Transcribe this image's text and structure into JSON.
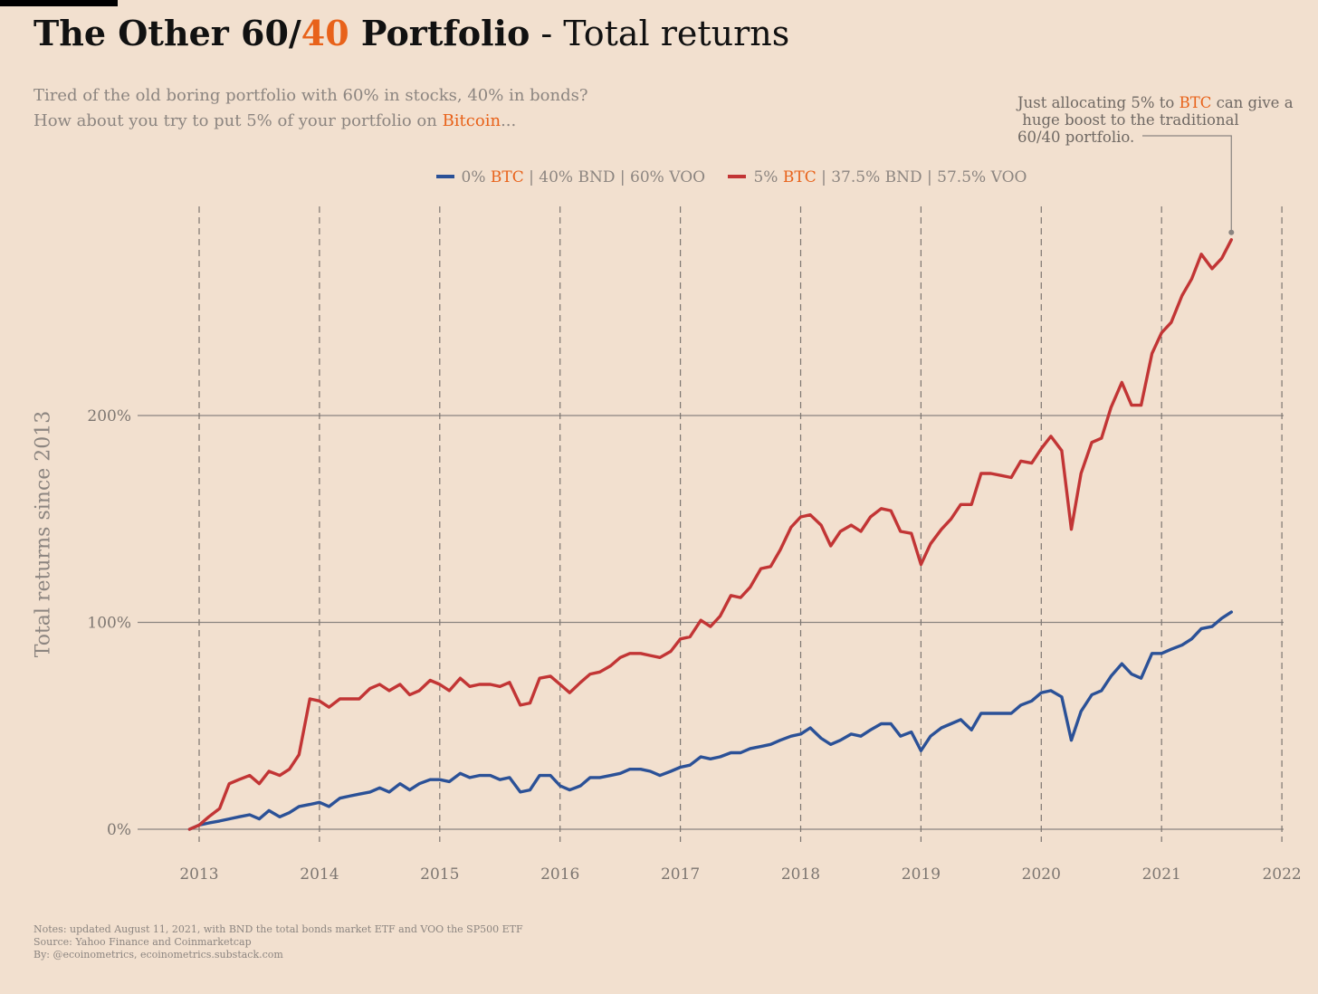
{
  "header": {
    "title_part1": "The Other 60/",
    "title_part2": "40",
    "title_part3": " Portfolio",
    "title_part4": " - Total returns",
    "subtitle_line1": "Tired of the old boring portfolio with 60% in stocks, 40% in bonds?",
    "subtitle_line2_pre": "How about you try to put 5% of your portfolio on ",
    "subtitle_line2_accent": "Bitcoin",
    "subtitle_line2_post": "..."
  },
  "annotation": {
    "line1_pre": "Just allocating 5% to ",
    "line1_accent": "BTC",
    "line1_post": " can give a",
    "line2": " huge boost to the traditional",
    "line3": "60/40 portfolio."
  },
  "legend": [
    {
      "pre": "0% ",
      "accent": "BTC",
      "post": " | 40% BND | 60% VOO",
      "color": "#2b5197"
    },
    {
      "pre": "5% ",
      "accent": "BTC",
      "post": " | 37.5% BND | 57.5% VOO",
      "color": "#c23535"
    }
  ],
  "notes": {
    "line1": "Notes: updated August 11, 2021, with BND the total bonds market ETF and VOO the SP500 ETF",
    "line2": "Source: Yahoo Finance and Coinmarketcap",
    "line3": "By: @ecoinometrics, ecoinometrics.substack.com"
  },
  "colors": {
    "background": "#f2e0cf",
    "accent": "#e8621a",
    "series_blue": "#2b5197",
    "series_red": "#c23535",
    "grid": "#8a8480"
  },
  "chart_data": {
    "type": "line",
    "title": "The Other 60/40 Portfolio - Total returns",
    "ylabel": "Total returns since 2013",
    "xlabel": "",
    "x_ticks": [
      "2013",
      "2014",
      "2015",
      "2016",
      "2017",
      "2018",
      "2019",
      "2020",
      "2021",
      "2022"
    ],
    "y_ticks": [
      0,
      100,
      200
    ],
    "y_tick_labels": [
      "0%",
      "100%",
      "200%"
    ],
    "xlim": [
      2012.5,
      2022
    ],
    "ylim": [
      -15,
      300
    ],
    "grid": {
      "horizontal": true,
      "vertical_dashed": true
    },
    "legend_position": "top-center",
    "series": [
      {
        "name": "0% BTC | 40% BND | 60% VOO",
        "color": "#2b5197",
        "points": [
          [
            2012.92,
            0
          ],
          [
            2013.0,
            2
          ],
          [
            2013.08,
            3
          ],
          [
            2013.17,
            4
          ],
          [
            2013.25,
            5
          ],
          [
            2013.33,
            6
          ],
          [
            2013.42,
            7
          ],
          [
            2013.5,
            5
          ],
          [
            2013.58,
            9
          ],
          [
            2013.67,
            6
          ],
          [
            2013.75,
            8
          ],
          [
            2013.83,
            11
          ],
          [
            2013.92,
            12
          ],
          [
            2014.0,
            13
          ],
          [
            2014.08,
            11
          ],
          [
            2014.17,
            15
          ],
          [
            2014.25,
            16
          ],
          [
            2014.33,
            17
          ],
          [
            2014.42,
            18
          ],
          [
            2014.5,
            20
          ],
          [
            2014.58,
            18
          ],
          [
            2014.67,
            22
          ],
          [
            2014.75,
            19
          ],
          [
            2014.83,
            22
          ],
          [
            2014.92,
            24
          ],
          [
            2015.0,
            24
          ],
          [
            2015.08,
            23
          ],
          [
            2015.17,
            27
          ],
          [
            2015.25,
            25
          ],
          [
            2015.33,
            26
          ],
          [
            2015.42,
            26
          ],
          [
            2015.5,
            24
          ],
          [
            2015.58,
            25
          ],
          [
            2015.67,
            18
          ],
          [
            2015.75,
            19
          ],
          [
            2015.83,
            26
          ],
          [
            2015.92,
            26
          ],
          [
            2016.0,
            21
          ],
          [
            2016.08,
            19
          ],
          [
            2016.17,
            21
          ],
          [
            2016.25,
            25
          ],
          [
            2016.33,
            25
          ],
          [
            2016.42,
            26
          ],
          [
            2016.5,
            27
          ],
          [
            2016.58,
            29
          ],
          [
            2016.67,
            29
          ],
          [
            2016.75,
            28
          ],
          [
            2016.83,
            26
          ],
          [
            2016.92,
            28
          ],
          [
            2017.0,
            30
          ],
          [
            2017.08,
            31
          ],
          [
            2017.17,
            35
          ],
          [
            2017.25,
            34
          ],
          [
            2017.33,
            35
          ],
          [
            2017.42,
            37
          ],
          [
            2017.5,
            37
          ],
          [
            2017.58,
            39
          ],
          [
            2017.67,
            40
          ],
          [
            2017.75,
            41
          ],
          [
            2017.83,
            43
          ],
          [
            2017.92,
            45
          ],
          [
            2018.0,
            46
          ],
          [
            2018.08,
            49
          ],
          [
            2018.17,
            44
          ],
          [
            2018.25,
            41
          ],
          [
            2018.33,
            43
          ],
          [
            2018.42,
            46
          ],
          [
            2018.5,
            45
          ],
          [
            2018.58,
            48
          ],
          [
            2018.67,
            51
          ],
          [
            2018.75,
            51
          ],
          [
            2018.83,
            45
          ],
          [
            2018.92,
            47
          ],
          [
            2019.0,
            38
          ],
          [
            2019.08,
            45
          ],
          [
            2019.17,
            49
          ],
          [
            2019.25,
            51
          ],
          [
            2019.33,
            53
          ],
          [
            2019.42,
            48
          ],
          [
            2019.5,
            56
          ],
          [
            2019.58,
            56
          ],
          [
            2019.67,
            56
          ],
          [
            2019.75,
            56
          ],
          [
            2019.83,
            60
          ],
          [
            2019.92,
            62
          ],
          [
            2020.0,
            66
          ],
          [
            2020.08,
            67
          ],
          [
            2020.17,
            64
          ],
          [
            2020.25,
            43
          ],
          [
            2020.33,
            57
          ],
          [
            2020.42,
            65
          ],
          [
            2020.5,
            67
          ],
          [
            2020.58,
            74
          ],
          [
            2020.67,
            80
          ],
          [
            2020.75,
            75
          ],
          [
            2020.83,
            73
          ],
          [
            2020.92,
            85
          ],
          [
            2021.0,
            85
          ],
          [
            2021.08,
            87
          ],
          [
            2021.17,
            89
          ],
          [
            2021.25,
            92
          ],
          [
            2021.33,
            97
          ],
          [
            2021.42,
            98
          ],
          [
            2021.5,
            102
          ],
          [
            2021.58,
            105
          ]
        ]
      },
      {
        "name": "5% BTC | 37.5% BND | 57.5% VOO",
        "color": "#c23535",
        "points": [
          [
            2012.92,
            0
          ],
          [
            2013.0,
            2
          ],
          [
            2013.08,
            6
          ],
          [
            2013.17,
            10
          ],
          [
            2013.25,
            22
          ],
          [
            2013.33,
            24
          ],
          [
            2013.42,
            26
          ],
          [
            2013.5,
            22
          ],
          [
            2013.58,
            28
          ],
          [
            2013.67,
            26
          ],
          [
            2013.75,
            29
          ],
          [
            2013.83,
            36
          ],
          [
            2013.92,
            63
          ],
          [
            2014.0,
            62
          ],
          [
            2014.08,
            59
          ],
          [
            2014.17,
            63
          ],
          [
            2014.25,
            63
          ],
          [
            2014.33,
            63
          ],
          [
            2014.42,
            68
          ],
          [
            2014.5,
            70
          ],
          [
            2014.58,
            67
          ],
          [
            2014.67,
            70
          ],
          [
            2014.75,
            65
          ],
          [
            2014.83,
            67
          ],
          [
            2014.92,
            72
          ],
          [
            2015.0,
            70
          ],
          [
            2015.08,
            67
          ],
          [
            2015.17,
            73
          ],
          [
            2015.25,
            69
          ],
          [
            2015.33,
            70
          ],
          [
            2015.42,
            70
          ],
          [
            2015.5,
            69
          ],
          [
            2015.58,
            71
          ],
          [
            2015.67,
            60
          ],
          [
            2015.75,
            61
          ],
          [
            2015.83,
            73
          ],
          [
            2015.92,
            74
          ],
          [
            2016.0,
            70
          ],
          [
            2016.08,
            66
          ],
          [
            2016.17,
            71
          ],
          [
            2016.25,
            75
          ],
          [
            2016.33,
            76
          ],
          [
            2016.42,
            79
          ],
          [
            2016.5,
            83
          ],
          [
            2016.58,
            85
          ],
          [
            2016.67,
            85
          ],
          [
            2016.75,
            84
          ],
          [
            2016.83,
            83
          ],
          [
            2016.92,
            86
          ],
          [
            2017.0,
            92
          ],
          [
            2017.08,
            93
          ],
          [
            2017.17,
            101
          ],
          [
            2017.25,
            98
          ],
          [
            2017.33,
            103
          ],
          [
            2017.42,
            113
          ],
          [
            2017.5,
            112
          ],
          [
            2017.58,
            117
          ],
          [
            2017.67,
            126
          ],
          [
            2017.75,
            127
          ],
          [
            2017.83,
            135
          ],
          [
            2017.92,
            146
          ],
          [
            2018.0,
            151
          ],
          [
            2018.08,
            152
          ],
          [
            2018.17,
            147
          ],
          [
            2018.25,
            137
          ],
          [
            2018.33,
            144
          ],
          [
            2018.42,
            147
          ],
          [
            2018.5,
            144
          ],
          [
            2018.58,
            151
          ],
          [
            2018.67,
            155
          ],
          [
            2018.75,
            154
          ],
          [
            2018.83,
            144
          ],
          [
            2018.92,
            143
          ],
          [
            2019.0,
            128
          ],
          [
            2019.08,
            138
          ],
          [
            2019.17,
            145
          ],
          [
            2019.25,
            150
          ],
          [
            2019.33,
            157
          ],
          [
            2019.42,
            157
          ],
          [
            2019.5,
            172
          ],
          [
            2019.58,
            172
          ],
          [
            2019.67,
            171
          ],
          [
            2019.75,
            170
          ],
          [
            2019.83,
            178
          ],
          [
            2019.92,
            177
          ],
          [
            2020.0,
            184
          ],
          [
            2020.08,
            190
          ],
          [
            2020.17,
            183
          ],
          [
            2020.25,
            145
          ],
          [
            2020.33,
            172
          ],
          [
            2020.42,
            187
          ],
          [
            2020.5,
            189
          ],
          [
            2020.58,
            204
          ],
          [
            2020.67,
            216
          ],
          [
            2020.75,
            205
          ],
          [
            2020.83,
            205
          ],
          [
            2020.92,
            230
          ],
          [
            2021.0,
            240
          ],
          [
            2021.08,
            245
          ],
          [
            2021.17,
            258
          ],
          [
            2021.25,
            266
          ],
          [
            2021.33,
            278
          ],
          [
            2021.42,
            271
          ],
          [
            2021.5,
            276
          ],
          [
            2021.58,
            285
          ]
        ]
      }
    ]
  }
}
